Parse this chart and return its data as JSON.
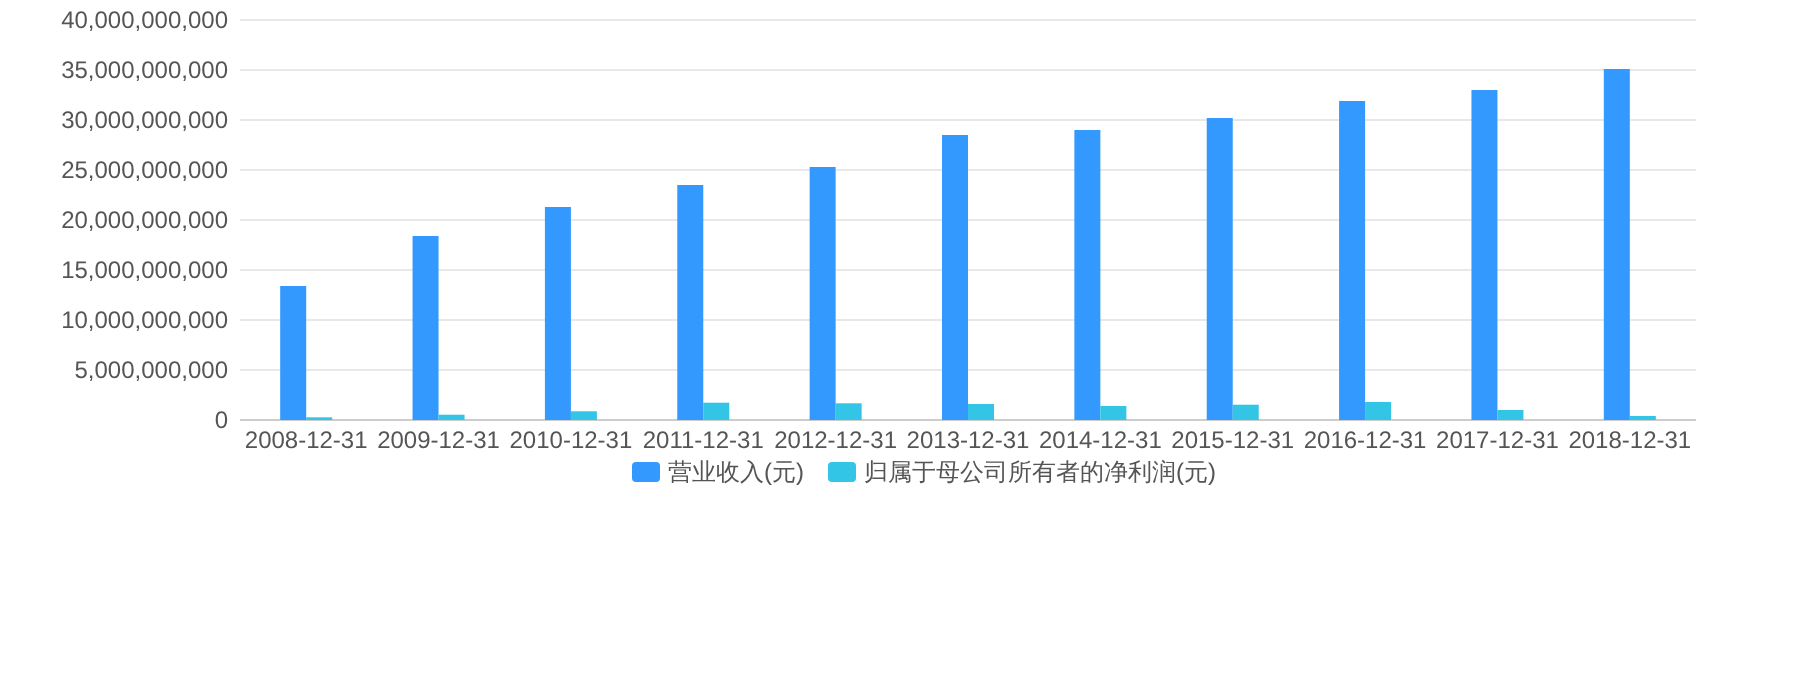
{
  "chart_data": {
    "type": "bar",
    "categories": [
      "2008-12-31",
      "2009-12-31",
      "2010-12-31",
      "2011-12-31",
      "2012-12-31",
      "2013-12-31",
      "2014-12-31",
      "2015-12-31",
      "2016-12-31",
      "2017-12-31",
      "2018-12-31"
    ],
    "series": [
      {
        "name": "营业收入(元)",
        "color": "#3399ff",
        "values": [
          13400000000,
          18400000000,
          21300000000,
          23500000000,
          25300000000,
          28500000000,
          29000000000,
          30200000000,
          31900000000,
          33000000000,
          35100000000
        ]
      },
      {
        "name": "归属于母公司所有者的净利润(元)",
        "color": "#33c5e6",
        "values": [
          270000000,
          530000000,
          870000000,
          1730000000,
          1670000000,
          1600000000,
          1400000000,
          1530000000,
          1800000000,
          1000000000,
          400000000
        ]
      }
    ],
    "ylim": [
      0,
      40000000000
    ],
    "yticks": [
      {
        "value": 0,
        "label": "0"
      },
      {
        "value": 5000000000,
        "label": "5,000,000,000"
      },
      {
        "value": 10000000000,
        "label": "10,000,000,000"
      },
      {
        "value": 15000000000,
        "label": "15,000,000,000"
      },
      {
        "value": 20000000000,
        "label": "20,000,000,000"
      },
      {
        "value": 25000000000,
        "label": "25,000,000,000"
      },
      {
        "value": 30000000000,
        "label": "30,000,000,000"
      },
      {
        "value": 35000000000,
        "label": "35,000,000,000"
      },
      {
        "value": 40000000000,
        "label": "40,000,000,000"
      }
    ],
    "grid": "y",
    "legend": "bottom"
  }
}
